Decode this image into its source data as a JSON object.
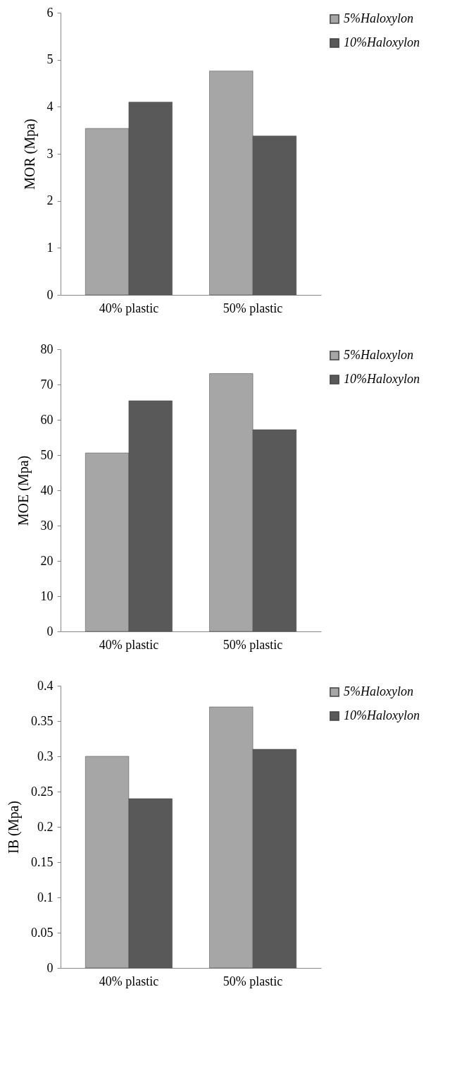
{
  "chart_data": [
    {
      "type": "bar",
      "categories": [
        "40%  plastic",
        "50% plastic"
      ],
      "ylabel": "MOR (Mpa)",
      "ylim": [
        0,
        6
      ],
      "yticks": [
        0,
        1,
        2,
        3,
        4,
        5,
        6
      ],
      "legend": "top right",
      "series": [
        {
          "name": "5%Haloxylon",
          "color": "#a6a6a6",
          "values": [
            3.54,
            4.76
          ]
        },
        {
          "name": "10%Haloxylon",
          "color": "#595959",
          "values": [
            4.1,
            3.38
          ]
        }
      ]
    },
    {
      "type": "bar",
      "categories": [
        "40%  plastic",
        "50% plastic"
      ],
      "ylabel": "MOE (Mpa)",
      "ylim": [
        0,
        80
      ],
      "yticks": [
        0,
        10,
        20,
        30,
        40,
        50,
        60,
        70,
        80
      ],
      "legend": "top right",
      "series": [
        {
          "name": "5%Haloxylon",
          "color": "#a6a6a6",
          "values": [
            50.6,
            73.1
          ]
        },
        {
          "name": "10%Haloxylon",
          "color": "#595959",
          "values": [
            65.4,
            57.2
          ]
        }
      ]
    },
    {
      "type": "bar",
      "categories": [
        "40%  plastic",
        "50% plastic"
      ],
      "ylabel": "IB (Mpa)",
      "ylim": [
        0,
        0.4
      ],
      "yticks": [
        0,
        0.05,
        0.1,
        0.15,
        0.2,
        0.25,
        0.3,
        0.35,
        0.4
      ],
      "legend": "top right",
      "series": [
        {
          "name": "5%Haloxylon",
          "color": "#a6a6a6",
          "values": [
            0.3,
            0.37
          ]
        },
        {
          "name": "10%Haloxylon",
          "color": "#595959",
          "values": [
            0.24,
            0.31
          ]
        }
      ]
    }
  ]
}
